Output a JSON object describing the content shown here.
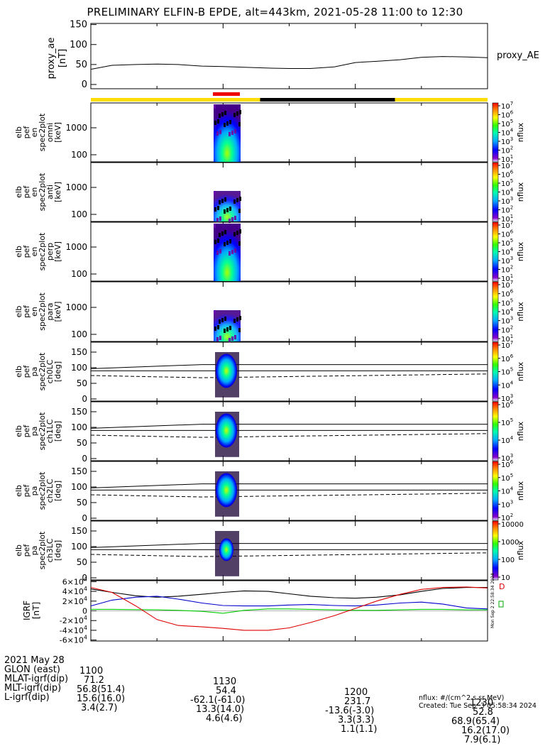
{
  "title": "PRELIMINARY ELFIN-B EPDE, alt=443km, 2021-05-28 11:00 to 12:30",
  "ae_panel": {
    "ylabel": "proxy_ae",
    "yunit": "[nT]",
    "legend": "proxy_AE",
    "yticks": [
      "0",
      "50",
      "100",
      "150"
    ]
  },
  "status_bar": {
    "colors": {
      "yellow": "#ffdd00",
      "black": "#000000",
      "red": "#ee0000"
    }
  },
  "spec_panels": [
    {
      "label": [
        "elb",
        "pef",
        "en",
        "spec2plot",
        "omni",
        "[keV]"
      ],
      "yticks": [
        "100",
        "1000"
      ],
      "cb_ticks": [
        "10^1",
        "10^2",
        "10^3",
        "10^4",
        "10^5",
        "10^6",
        "10^7"
      ],
      "cb_label": "nflux"
    },
    {
      "label": [
        "elb",
        "pef",
        "en",
        "spec2plot",
        "anti",
        "[keV]"
      ],
      "yticks": [
        "100",
        "1000"
      ],
      "cb_ticks": [
        "10^1",
        "10^2",
        "10^3",
        "10^4",
        "10^5",
        "10^6",
        "10^7"
      ],
      "cb_label": "nflux"
    },
    {
      "label": [
        "elb",
        "pef",
        "en",
        "spec2plot",
        "perp",
        "[keV]"
      ],
      "yticks": [
        "100",
        "1000"
      ],
      "cb_ticks": [
        "10^1",
        "10^2",
        "10^3",
        "10^4",
        "10^5",
        "10^6",
        "10^7"
      ],
      "cb_label": "nflux"
    },
    {
      "label": [
        "elb",
        "pef",
        "en",
        "spec2plot",
        "para",
        "[keV]"
      ],
      "yticks": [
        "100",
        "1000"
      ],
      "cb_ticks": [
        "10^1",
        "10^2",
        "10^3",
        "10^4",
        "10^5",
        "10^6",
        "10^7"
      ],
      "cb_label": "nflux"
    }
  ],
  "pa_panels": [
    {
      "label": [
        "elb",
        "pef",
        "pa",
        "spec2plot",
        "ch0LC",
        "[deg]"
      ],
      "yticks": [
        "0",
        "50",
        "100",
        "150"
      ],
      "cb_ticks": [
        "10^3",
        "10^4",
        "10^5",
        "10^6",
        "10^7"
      ],
      "cb_label": "nflux"
    },
    {
      "label": [
        "elb",
        "pef",
        "pa",
        "spec2plot",
        "ch1LC",
        "[deg]"
      ],
      "yticks": [
        "0",
        "50",
        "100",
        "150"
      ],
      "cb_ticks": [
        "10^3",
        "10^4",
        "10^5",
        "10^6"
      ],
      "cb_label": "nflux"
    },
    {
      "label": [
        "elb",
        "pef",
        "pa",
        "spec2plot",
        "ch2LC",
        "[deg]"
      ],
      "yticks": [
        "0",
        "50",
        "100",
        "150"
      ],
      "cb_ticks": [
        "10^2",
        "10^3",
        "10^4",
        "10^5",
        "10^6"
      ],
      "cb_label": "nflux"
    },
    {
      "label": [
        "elb",
        "pef",
        "pa",
        "spec2plot",
        "ch3LC",
        "[deg]"
      ],
      "yticks": [
        "0",
        "50",
        "100",
        "150"
      ],
      "cb_ticks": [
        "10",
        "100",
        "1000",
        "10000"
      ],
      "cb_label": "nflux"
    }
  ],
  "igrf_panel": {
    "ylabel": "IGRF",
    "yunit": "[nT]",
    "yticks": [
      "-6×10^4",
      "-4×10^4",
      "-2×10^4",
      "0",
      "2×10^4",
      "4×10^4",
      "6×10^4"
    ],
    "side_text": "Mon Sep  2 22:58:34 2024"
  },
  "chart_data": [
    {
      "type": "line",
      "title": "PRELIMINARY ELFIN-B EPDE, alt=443km, 2021-05-28 11:00 to 12:30",
      "ylabel": "proxy_ae [nT]",
      "ylim": [
        0,
        160
      ],
      "x": [
        11.0,
        11.08,
        11.17,
        11.25,
        11.33,
        11.42,
        11.5,
        11.58,
        11.67,
        11.75,
        11.83,
        11.92,
        12.0,
        12.08,
        12.17,
        12.25,
        12.33,
        12.42,
        12.5
      ],
      "series": [
        {
          "name": "proxy_AE",
          "values": [
            38,
            48,
            50,
            51,
            50,
            46,
            45,
            43,
            41,
            40,
            40,
            44,
            55,
            58,
            62,
            68,
            70,
            69,
            67
          ]
        }
      ]
    },
    {
      "type": "line",
      "ylabel": "IGRF [nT]",
      "ylim": [
        -62000,
        62000
      ],
      "x": [
        11.0,
        11.08,
        11.17,
        11.25,
        11.33,
        11.42,
        11.5,
        11.58,
        11.67,
        11.75,
        11.83,
        11.92,
        12.0,
        12.08,
        12.17,
        12.25,
        12.33,
        12.42,
        12.5
      ],
      "series": [
        {
          "values": [
            45000,
            38000,
            31000,
            28000,
            30000,
            34000,
            38000,
            41000,
            40000,
            35000,
            30000,
            27000,
            26000,
            28000,
            33000,
            40000,
            46000,
            48000,
            48000
          ],
          "color": "#000000"
        },
        {
          "values": [
            10000,
            22000,
            28000,
            30000,
            24000,
            16000,
            11000,
            10000,
            10000,
            12000,
            13000,
            11000,
            10000,
            12000,
            16000,
            18000,
            14000,
            6000,
            4000
          ],
          "color": "#0000cc"
        },
        {
          "values": [
            3000,
            3000,
            2500,
            2000,
            1000,
            -1000,
            -5000,
            1000,
            4000,
            4000,
            3000,
            2000,
            1000,
            1000,
            2000,
            3000,
            3000,
            2000,
            2000
          ],
          "color": "#00cc00"
        },
        {
          "values": [
            48000,
            38000,
            10000,
            -18000,
            -30000,
            -33000,
            -36000,
            -40000,
            -40000,
            -35000,
            -24000,
            -10000,
            5000,
            20000,
            34000,
            44000,
            48000,
            49000,
            47000
          ],
          "color": "#dd0000"
        }
      ]
    }
  ],
  "ephemeris": {
    "rows": [
      {
        "label": "2021 May 28",
        "vals": [
          "1100",
          "1130",
          "1200",
          "1230"
        ]
      },
      {
        "label": "GLON (east)",
        "vals": [
          "71.2",
          "54.4",
          "231.7",
          "52.8"
        ]
      },
      {
        "label": "MLAT-igrf(dip)",
        "vals": [
          "56.8(51.4)",
          "-62.1(-61.0)",
          "-13.6(-3.0)",
          "68.9(65.4)"
        ]
      },
      {
        "label": "MLT-igrf(dip)",
        "vals": [
          "15.6(16.0)",
          "13.3(14.0)",
          "3.3(3.3)",
          "16.2(17.0)"
        ]
      },
      {
        "label": "L-igrf(dip)",
        "vals": [
          "3.4(2.7)",
          "4.6(4.6)",
          "1.1(1.1)",
          "7.9(6.1)"
        ]
      }
    ]
  },
  "footer": {
    "units": "nflux: #/(cm^2 s sr MeV)",
    "created": "Created: Tue Sep  3 05:58:34 2024"
  }
}
